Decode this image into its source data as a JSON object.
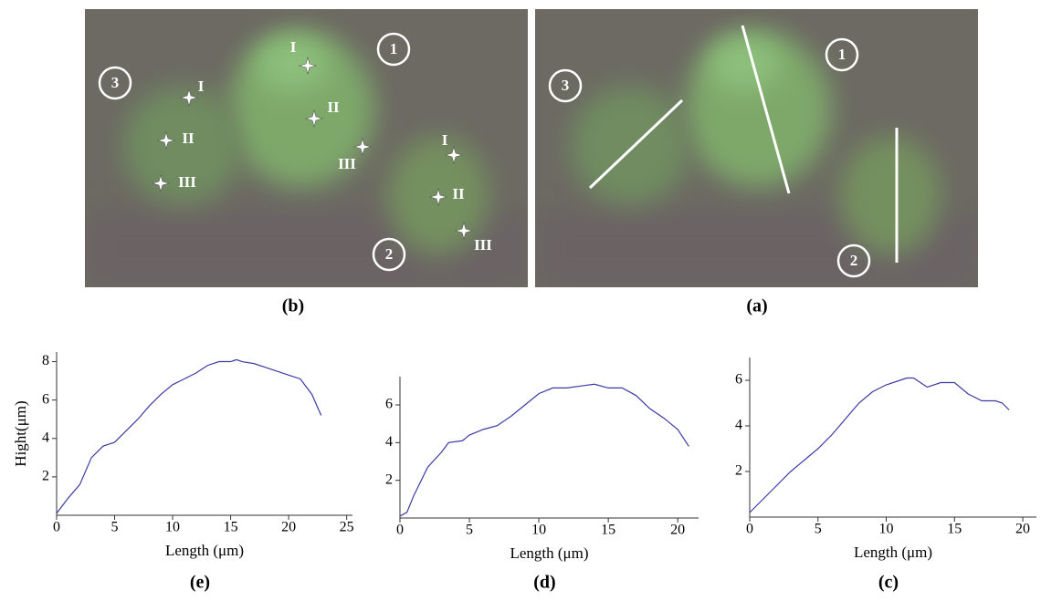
{
  "image_b": {
    "panel": "(b)",
    "regions": [
      "1",
      "2",
      "3"
    ],
    "points": [
      "I",
      "II",
      "III",
      "I",
      "II",
      "III",
      "I",
      "II",
      "III"
    ]
  },
  "image_a": {
    "panel": "(a)",
    "regions": [
      "1",
      "2",
      "3"
    ]
  },
  "chart_data": [
    {
      "type": "line",
      "panel": "(e)",
      "x_label": "Length (μm)",
      "y_label": "Hight(μm)",
      "color": "#3b3ba3",
      "x": [
        0,
        1,
        2,
        3,
        4,
        5,
        6,
        7,
        8,
        9,
        10,
        11,
        12,
        13,
        14,
        15,
        15.5,
        16,
        17,
        18,
        19,
        20,
        21,
        22,
        22.8
      ],
      "values": [
        0.1,
        0.9,
        1.6,
        3.0,
        3.6,
        3.8,
        4.4,
        5.0,
        5.7,
        6.3,
        6.8,
        7.1,
        7.4,
        7.8,
        8.0,
        8.0,
        8.1,
        8.0,
        7.9,
        7.7,
        7.5,
        7.3,
        7.1,
        6.3,
        5.2
      ],
      "xlim": [
        0,
        25.5
      ],
      "ylim": [
        0,
        8.5
      ],
      "xticks": [
        0,
        5,
        10,
        15,
        20,
        25
      ],
      "yticks": [
        2,
        4,
        6,
        8
      ]
    },
    {
      "type": "line",
      "panel": "(d)",
      "x_label": "Length (μm)",
      "color": "#3b3ba3",
      "x": [
        0,
        0.5,
        1,
        2,
        3,
        3.5,
        4.5,
        5,
        6,
        7,
        8,
        9,
        10,
        11,
        12,
        13,
        14,
        15,
        16,
        17,
        18,
        19,
        20,
        20.8
      ],
      "values": [
        0.1,
        0.3,
        1.2,
        2.7,
        3.5,
        4.0,
        4.1,
        4.4,
        4.7,
        4.9,
        5.4,
        6.0,
        6.6,
        6.9,
        6.9,
        7.0,
        7.1,
        6.9,
        6.9,
        6.5,
        5.8,
        5.3,
        4.7,
        3.8
      ],
      "xlim": [
        0,
        21.5
      ],
      "ylim": [
        0,
        7.5
      ],
      "xticks": [
        0,
        5,
        10,
        15,
        20
      ],
      "yticks": [
        2,
        4,
        6
      ]
    },
    {
      "type": "line",
      "panel": "(c)",
      "x_label": "Length (μm)",
      "color": "#3b3ba3",
      "x": [
        0,
        1,
        2,
        3,
        4,
        5,
        6,
        7,
        8,
        9,
        10,
        11,
        11.5,
        12,
        13,
        14,
        15,
        16,
        17,
        18,
        18.5,
        19
      ],
      "values": [
        0.2,
        0.8,
        1.4,
        2.0,
        2.5,
        3.0,
        3.6,
        4.3,
        5.0,
        5.5,
        5.8,
        6.0,
        6.1,
        6.1,
        5.7,
        5.9,
        5.9,
        5.4,
        5.1,
        5.1,
        5.0,
        4.7
      ],
      "xlim": [
        0,
        21
      ],
      "ylim": [
        0,
        7
      ],
      "xticks": [
        0,
        5,
        10,
        15,
        20
      ],
      "yticks": [
        2,
        4,
        6
      ]
    }
  ]
}
